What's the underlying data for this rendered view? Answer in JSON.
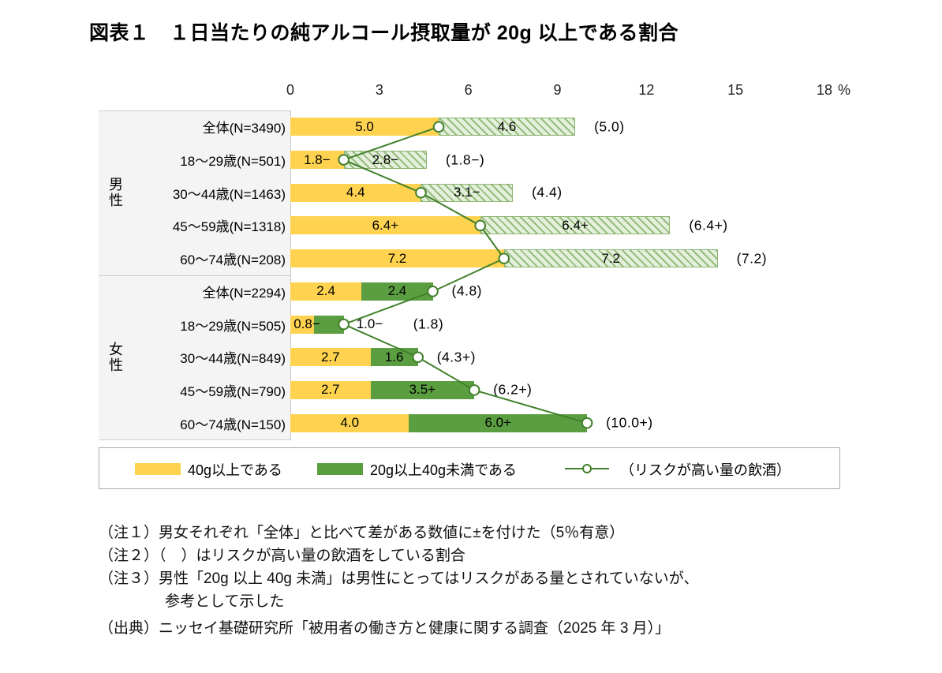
{
  "title": "図表１　１日当たりの純アルコール摂取量が 20g 以上である割合",
  "chart_data": {
    "type": "bar",
    "orientation": "horizontal",
    "title": "１日当たりの純アルコール摂取量が 20g 以上である割合",
    "unit": "%",
    "xlim": [
      0,
      18
    ],
    "axis_ticks": [
      0,
      3,
      6,
      9,
      12,
      15,
      18
    ],
    "grid": false,
    "legend_position": "bottom",
    "series_labels": [
      "40g以上である",
      "20g以上40g未満である",
      "（リスクが高い量の飲酒）"
    ],
    "groups": [
      {
        "name": "男性",
        "second_segment_style": "hatched",
        "rows": [
          {
            "label": "全体(N=3490)",
            "seg1": 5.0,
            "seg1_label": "5.0",
            "seg2": 4.6,
            "seg2_label": "4.6",
            "risk": 5.0,
            "risk_label": "(5.0)"
          },
          {
            "label": "18〜29歳(N=501)",
            "seg1": 1.8,
            "seg1_label": "1.8−",
            "seg2": 2.8,
            "seg2_label": "2.8−",
            "risk": 1.8,
            "risk_label": "(1.8−)"
          },
          {
            "label": "30〜44歳(N=1463)",
            "seg1": 4.4,
            "seg1_label": "4.4",
            "seg2": 3.1,
            "seg2_label": "3.1−",
            "risk": 4.4,
            "risk_label": "(4.4)"
          },
          {
            "label": "45〜59歳(N=1318)",
            "seg1": 6.4,
            "seg1_label": "6.4+",
            "seg2": 6.4,
            "seg2_label": "6.4+",
            "risk": 6.4,
            "risk_label": "(6.4+)"
          },
          {
            "label": "60〜74歳(N=208)",
            "seg1": 7.2,
            "seg1_label": "7.2",
            "seg2": 7.2,
            "seg2_label": "7.2",
            "risk": 7.2,
            "risk_label": "(7.2)"
          }
        ]
      },
      {
        "name": "女性",
        "second_segment_style": "solid",
        "rows": [
          {
            "label": "全体(N=2294)",
            "seg1": 2.4,
            "seg1_label": "2.4",
            "seg2": 2.4,
            "seg2_label": "2.4",
            "risk": 4.8,
            "risk_label": "(4.8)"
          },
          {
            "label": "18〜29歳(N=505)",
            "seg1": 0.8,
            "seg1_label": "0.8−",
            "seg2": 1.0,
            "seg2_label": "1.0−",
            "risk": 1.8,
            "risk_label": "(1.8)"
          },
          {
            "label": "30〜44歳(N=849)",
            "seg1": 2.7,
            "seg1_label": "2.7",
            "seg2": 1.6,
            "seg2_label": "1.6",
            "risk": 4.3,
            "risk_label": "(4.3+)"
          },
          {
            "label": "45〜59歳(N=790)",
            "seg1": 2.7,
            "seg1_label": "2.7",
            "seg2": 3.5,
            "seg2_label": "3.5+",
            "risk": 6.2,
            "risk_label": "(6.2+)"
          },
          {
            "label": "60〜74歳(N=150)",
            "seg1": 4.0,
            "seg1_label": "4.0",
            "seg2": 6.0,
            "seg2_label": "6.0+",
            "risk": 10.0,
            "risk_label": "(10.0+)"
          }
        ]
      }
    ],
    "legend": [
      {
        "type": "yellow",
        "label": "40g以上である"
      },
      {
        "type": "green",
        "label": "20g以上40g未満である"
      },
      {
        "type": "line",
        "label": "（リスクが高い量の飲酒）"
      }
    ],
    "colors": {
      "bar_40g": "#FFD34F",
      "bar_20_40g_solid": "#5B9E41",
      "bar_20_40g_hatch_fill": "#E4F0DC",
      "bar_20_40g_hatch_line": "#7CAA5F",
      "risk_line": "#41802A"
    }
  },
  "notes": [
    "（注１）男女それぞれ「全体」と比べて差がある数値に±を付けた（5％有意）",
    "（注２）（　）はリスクが高い量の飲酒をしている割合",
    "（注３）男性「20g 以上 40g 未満」は男性にとってはリスクがある量とされていないが、",
    "参考として示した",
    "（出典）ニッセイ基礎研究所「被用者の働き方と健康に関する調査（2025 年 3 月）」"
  ]
}
